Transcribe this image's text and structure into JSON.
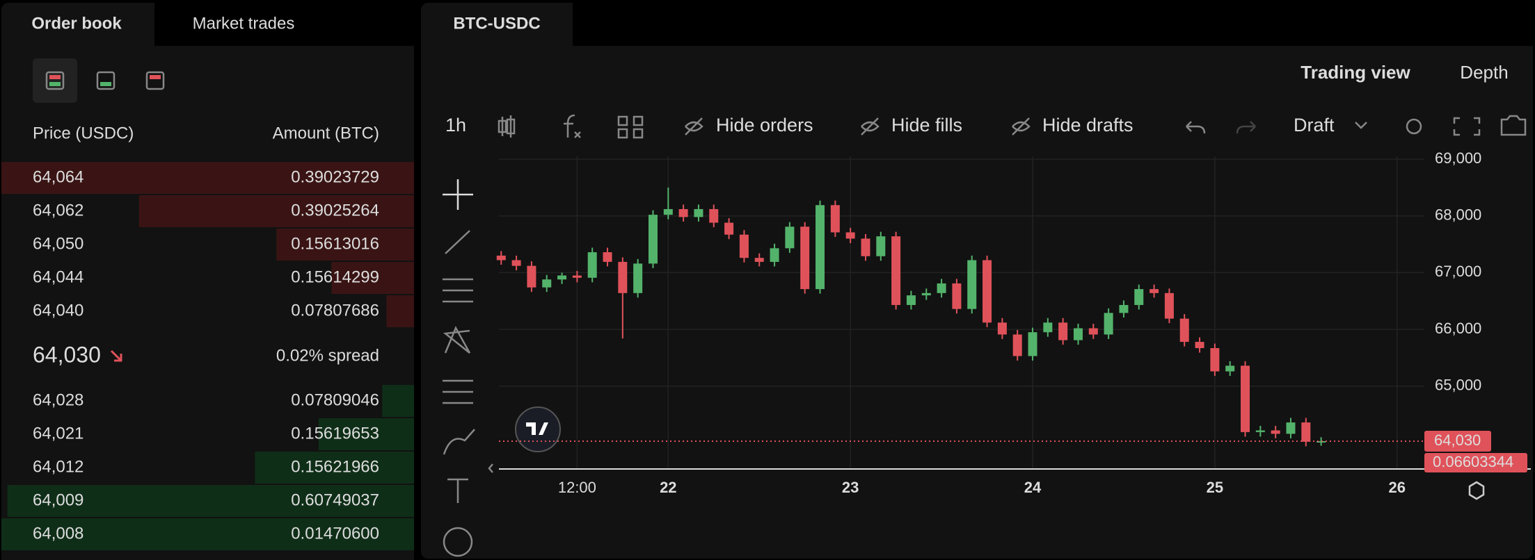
{
  "order_book": {
    "tabs": [
      "Order book",
      "Market trades"
    ],
    "columns": [
      "Price (USDC)",
      "Amount (BTC)"
    ],
    "asks": [
      {
        "price": "64,064",
        "amount": "0.39023729"
      },
      {
        "price": "64,062",
        "amount": "0.39025264"
      },
      {
        "price": "64,050",
        "amount": "0.15613016"
      },
      {
        "price": "64,044",
        "amount": "0.15614299"
      },
      {
        "price": "64,040",
        "amount": "0.07807686"
      }
    ],
    "mid": {
      "price": "64,030",
      "spread": "0.02% spread"
    },
    "bids": [
      {
        "price": "64,028",
        "amount": "0.07809046"
      },
      {
        "price": "64,021",
        "amount": "0.15619653"
      },
      {
        "price": "64,012",
        "amount": "0.15621966"
      },
      {
        "price": "64,009",
        "amount": "0.60749037"
      },
      {
        "price": "64,008",
        "amount": "0.01470600"
      }
    ]
  },
  "chart_panel": {
    "tab": "BTC-USDC",
    "views": [
      "Trading view",
      "Depth"
    ],
    "interval": "1h",
    "buttons": [
      "Hide orders",
      "Hide fills",
      "Hide drafts"
    ],
    "draft": "Draft"
  },
  "chart_data": {
    "type": "candlestick",
    "x": [
      -22,
      -20,
      -18,
      -16,
      -14,
      -12,
      -10,
      -8,
      -6,
      -4,
      -2,
      0,
      2,
      4,
      6,
      8,
      10,
      12,
      14,
      16,
      18,
      20,
      22,
      24,
      26,
      28,
      30,
      32,
      34,
      36,
      38,
      40,
      42,
      44,
      46,
      48,
      50,
      52,
      54,
      56,
      58,
      60,
      62,
      64,
      66,
      68,
      70,
      72,
      74,
      76,
      78,
      80,
      82,
      84,
      86
    ],
    "open": [
      67300,
      67220,
      67120,
      66740,
      66880,
      66950,
      66910,
      67360,
      67190,
      66640,
      67160,
      68020,
      68120,
      67980,
      68120,
      67880,
      67670,
      67260,
      67190,
      67430,
      67810,
      66710,
      68190,
      67710,
      67600,
      67290,
      67640,
      66430,
      66600,
      66640,
      66810,
      66360,
      67220,
      66120,
      65910,
      65530,
      65950,
      66120,
      65810,
      66020,
      65910,
      66290,
      66430,
      66710,
      66640,
      66190,
      65780,
      65670,
      65260,
      65360,
      64190,
      64220,
      64160,
      64360,
      64020
    ],
    "high": [
      67380,
      67300,
      67200,
      66960,
      67000,
      67030,
      67440,
      67440,
      67270,
      67240,
      68100,
      68500,
      68200,
      68200,
      68200,
      67960,
      67750,
      67340,
      67510,
      67890,
      67890,
      68270,
      68270,
      67790,
      67680,
      67720,
      67720,
      66680,
      66720,
      66890,
      66890,
      67300,
      67300,
      66200,
      65990,
      66030,
      66200,
      66200,
      66100,
      66100,
      66370,
      66510,
      66790,
      66790,
      66720,
      66270,
      65860,
      65750,
      65440,
      65440,
      64300,
      64300,
      64440,
      64440,
      64100
    ],
    "low": [
      67140,
      67040,
      66660,
      66660,
      66800,
      66830,
      66830,
      67110,
      65840,
      66560,
      67080,
      67940,
      67900,
      67900,
      67800,
      67590,
      67180,
      67110,
      67110,
      67350,
      66630,
      66630,
      67630,
      67520,
      67210,
      67210,
      66350,
      66350,
      66520,
      66560,
      66280,
      66280,
      66040,
      65830,
      65450,
      65450,
      65870,
      65730,
      65730,
      65830,
      65830,
      66210,
      66350,
      66560,
      66110,
      65700,
      65590,
      65180,
      65180,
      64110,
      64110,
      64080,
      64080,
      63940,
      63950
    ],
    "close": [
      67220,
      67120,
      66740,
      66880,
      66950,
      66910,
      67360,
      67190,
      66640,
      67160,
      68020,
      68120,
      67980,
      68120,
      67880,
      67670,
      67260,
      67190,
      67430,
      67810,
      66710,
      68190,
      67710,
      67600,
      67290,
      67640,
      66430,
      66600,
      66640,
      66810,
      66360,
      67220,
      66120,
      65910,
      65530,
      65950,
      66120,
      65810,
      66020,
      65910,
      66290,
      66430,
      66710,
      66640,
      66190,
      65780,
      65670,
      65260,
      65360,
      64190,
      64220,
      64160,
      64360,
      64020,
      64030
    ],
    "xlim": [
      -22.3,
      99.6
    ],
    "ylim": [
      63540,
      69050
    ],
    "xticks": [
      {
        "value": -12,
        "label": "12:00"
      },
      {
        "value": 0,
        "label": "22"
      },
      {
        "value": 24,
        "label": "23"
      },
      {
        "value": 48,
        "label": "24"
      },
      {
        "value": 72,
        "label": "25"
      },
      {
        "value": 96,
        "label": "26"
      }
    ],
    "yticks": [
      {
        "value": 65000,
        "label": "65,000"
      },
      {
        "value": 66000,
        "label": "66,000"
      },
      {
        "value": 67000,
        "label": "67,000"
      },
      {
        "value": 68000,
        "label": "68,000"
      },
      {
        "value": 69000,
        "label": "69,000"
      }
    ],
    "last_price": {
      "value": 64030,
      "label": "64,030"
    },
    "last_amount": "0.06603344",
    "up_color": "#53b36b",
    "down_color": "#e0525a",
    "grid": true
  }
}
